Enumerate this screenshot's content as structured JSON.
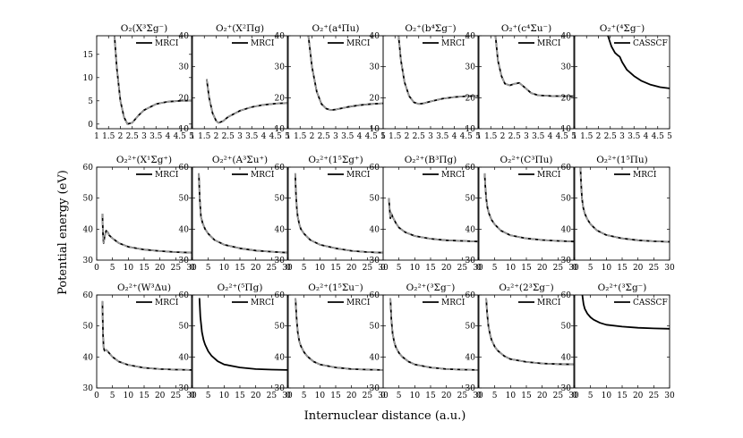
{
  "figure": {
    "xlabel": "Internuclear distance (a.u.)",
    "ylabel": "Potential energy (eV)",
    "colors": {
      "curve": "#000000",
      "overlay": "#9a9a9a"
    }
  },
  "chart_data": [
    {
      "type": "line",
      "title": "O₂(X³Σg⁻)",
      "method": "MRCI",
      "legend_label": "MRCI",
      "xlim": [
        1,
        5
      ],
      "ylim": [
        -1,
        19
      ],
      "xticks": [
        1,
        1.5,
        2,
        2.5,
        3,
        3.5,
        4,
        4.5,
        5
      ],
      "yticks": [
        0,
        5,
        10,
        15
      ],
      "dashed": true,
      "x": [
        1.75,
        1.85,
        2.0,
        2.15,
        2.3,
        2.5,
        2.75,
        3.0,
        3.5,
        4.0,
        4.5,
        5.0
      ],
      "y": [
        19,
        12,
        5.0,
        1.5,
        0.0,
        0.3,
        1.8,
        3.0,
        4.3,
        4.8,
        5.0,
        5.05
      ]
    },
    {
      "type": "line",
      "title": "O₂⁺(X²Πg)",
      "method": "MRCI",
      "legend_label": "MRCI",
      "xlim": [
        1,
        5
      ],
      "ylim": [
        10,
        40
      ],
      "xticks": [
        1,
        1.5,
        2,
        2.5,
        3,
        3.5,
        4,
        4.5,
        5
      ],
      "yticks": [
        10,
        20,
        30,
        40
      ],
      "dashed": true,
      "x": [
        1.6,
        1.7,
        1.85,
        2.0,
        2.1,
        2.3,
        2.5,
        3.0,
        3.5,
        4.0,
        4.5,
        5.0
      ],
      "y": [
        26,
        20,
        15,
        12.5,
        11.9,
        12.5,
        13.8,
        15.8,
        17.0,
        17.7,
        18.1,
        18.3
      ]
    },
    {
      "type": "line",
      "title": "O₂⁺(a⁴Πu)",
      "method": "MRCI",
      "legend_label": "MRCI",
      "xlim": [
        1,
        5
      ],
      "ylim": [
        10,
        40
      ],
      "xticks": [
        1,
        1.5,
        2,
        2.5,
        3,
        3.5,
        4,
        4.5,
        5
      ],
      "yticks": [
        10,
        20,
        30,
        40
      ],
      "dashed": true,
      "x": [
        1.85,
        2.0,
        2.2,
        2.4,
        2.6,
        2.8,
        3.0,
        3.5,
        4.0,
        4.5,
        5.0
      ],
      "y": [
        40,
        30,
        22,
        18,
        16.5,
        16.0,
        16.2,
        17.0,
        17.6,
        18.0,
        18.2
      ]
    },
    {
      "type": "line",
      "title": "O₂⁺(b⁴Σg⁻)",
      "method": "MRCI",
      "legend_label": "MRCI",
      "xlim": [
        1,
        5
      ],
      "ylim": [
        10,
        40
      ],
      "xticks": [
        1,
        1.5,
        2,
        2.5,
        3,
        3.5,
        4,
        4.5,
        5
      ],
      "yticks": [
        10,
        20,
        30,
        40
      ],
      "dashed": true,
      "x": [
        1.65,
        1.75,
        1.9,
        2.1,
        2.3,
        2.5,
        2.7,
        3.0,
        3.5,
        4.0,
        4.5,
        5.0
      ],
      "y": [
        40,
        32,
        25,
        20.5,
        18.5,
        18.0,
        18.2,
        18.8,
        19.7,
        20.2,
        20.5,
        20.6
      ]
    },
    {
      "type": "line",
      "title": "O₂⁺(c⁴Σu⁻)",
      "method": "MRCI",
      "legend_label": "MRCI",
      "xlim": [
        1,
        5
      ],
      "ylim": [
        10,
        40
      ],
      "xticks": [
        1,
        1.5,
        2,
        2.5,
        3,
        3.5,
        4,
        4.5,
        5
      ],
      "yticks": [
        10,
        20,
        30,
        40
      ],
      "dashed": true,
      "x": [
        1.7,
        1.8,
        1.95,
        2.1,
        2.3,
        2.5,
        2.7,
        2.9,
        3.2,
        3.5,
        4.0,
        4.5,
        5.0
      ],
      "y": [
        40,
        32,
        27,
        24.5,
        24.0,
        24.5,
        24.8,
        23.5,
        21.5,
        20.8,
        20.6,
        20.5,
        20.5
      ]
    },
    {
      "type": "line",
      "title": "O₂⁺(⁴Σg⁻)",
      "method": "CASSCF",
      "legend_label": "CASSCF",
      "xlim": [
        1,
        5
      ],
      "ylim": [
        10,
        40
      ],
      "xticks": [
        1,
        1.5,
        2,
        2.5,
        3,
        3.5,
        4,
        4.5,
        5
      ],
      "yticks": [
        10,
        20,
        30,
        40
      ],
      "dashed": false,
      "x": [
        2.4,
        2.55,
        2.7,
        2.8,
        2.9,
        3.0,
        3.2,
        3.5,
        3.8,
        4.2,
        4.6,
        5.0
      ],
      "y": [
        40,
        36.5,
        34.5,
        33.8,
        33.2,
        31.5,
        29.0,
        27.0,
        25.5,
        24.2,
        23.4,
        23.0
      ]
    },
    {
      "type": "line",
      "title": "O₂²⁺(X¹Σg⁺)",
      "method": "MRCI",
      "legend_label": "MRCI",
      "xlim": [
        0,
        30
      ],
      "ylim": [
        30,
        60
      ],
      "xticks": [
        0,
        5,
        10,
        15,
        20,
        25,
        30
      ],
      "yticks": [
        30,
        40,
        50,
        60
      ],
      "dashed": true,
      "x": [
        1.8,
        2.0,
        2.2,
        2.5,
        3.0,
        3.5,
        4.0,
        5.0,
        7.0,
        10.0,
        15.0,
        20.0,
        25.0,
        30.0
      ],
      "y": [
        45,
        38,
        35.5,
        37.5,
        39.5,
        39.0,
        38.0,
        37.0,
        35.5,
        34.3,
        33.4,
        32.9,
        32.6,
        32.4
      ]
    },
    {
      "type": "line",
      "title": "O₂²⁺(A³Σu⁺)",
      "method": "MRCI",
      "legend_label": "MRCI",
      "xlim": [
        0,
        30
      ],
      "ylim": [
        30,
        60
      ],
      "xticks": [
        0,
        5,
        10,
        15,
        20,
        25,
        30
      ],
      "yticks": [
        30,
        40,
        50,
        60
      ],
      "dashed": true,
      "x": [
        2.0,
        2.3,
        2.7,
        3.2,
        4.0,
        5.0,
        7.0,
        10.0,
        15.0,
        20.0,
        25.0,
        30.0
      ],
      "y": [
        58,
        50,
        44,
        42,
        40,
        38.5,
        36.5,
        35.0,
        33.8,
        33.1,
        32.7,
        32.4
      ]
    },
    {
      "type": "line",
      "title": "O₂²⁺(1⁵Σg⁺)",
      "method": "MRCI",
      "legend_label": "MRCI",
      "xlim": [
        0,
        30
      ],
      "ylim": [
        30,
        60
      ],
      "xticks": [
        0,
        5,
        10,
        15,
        20,
        25,
        30
      ],
      "yticks": [
        30,
        40,
        50,
        60
      ],
      "dashed": true,
      "x": [
        2.2,
        2.4,
        2.7,
        3.0,
        3.5,
        4.0,
        5.0,
        7.0,
        10.0,
        15.0,
        20.0,
        25.0,
        30.0
      ],
      "y": [
        58,
        52,
        47,
        44,
        41.5,
        40,
        38.5,
        36.5,
        35.0,
        33.8,
        33.0,
        32.6,
        32.4
      ]
    },
    {
      "type": "line",
      "title": "O₂²⁺(B³Πg)",
      "method": "MRCI",
      "legend_label": "MRCI",
      "xlim": [
        0,
        30
      ],
      "ylim": [
        30,
        60
      ],
      "xticks": [
        0,
        5,
        10,
        15,
        20,
        25,
        30
      ],
      "yticks": [
        30,
        40,
        50,
        60
      ],
      "dashed": true,
      "x": [
        1.8,
        2.0,
        2.3,
        2.6,
        3.0,
        3.5,
        4.0,
        5.0,
        7.0,
        10.0,
        15.0,
        20.0,
        25.0,
        30.0
      ],
      "y": [
        50,
        47,
        43.5,
        45,
        44,
        43,
        42,
        40.5,
        39,
        37.8,
        36.9,
        36.4,
        36.2,
        36.0
      ]
    },
    {
      "type": "line",
      "title": "O₂²⁺(C³Πu)",
      "method": "MRCI",
      "legend_label": "MRCI",
      "xlim": [
        0,
        30
      ],
      "ylim": [
        30,
        60
      ],
      "xticks": [
        0,
        5,
        10,
        15,
        20,
        25,
        30
      ],
      "yticks": [
        30,
        40,
        50,
        60
      ],
      "dashed": true,
      "x": [
        1.8,
        2.0,
        2.3,
        2.7,
        3.2,
        4.0,
        5.0,
        7.0,
        10.0,
        15.0,
        20.0,
        25.0,
        30.0
      ],
      "y": [
        58,
        54,
        50,
        47,
        45,
        43,
        41.5,
        39.5,
        38,
        37,
        36.5,
        36.2,
        36.0
      ]
    },
    {
      "type": "line",
      "title": "O₂²⁺(1⁵Πu)",
      "method": "MRCI",
      "legend_label": "MRCI",
      "xlim": [
        0,
        30
      ],
      "ylim": [
        30,
        60
      ],
      "xticks": [
        0,
        5,
        10,
        15,
        20,
        25,
        30
      ],
      "yticks": [
        30,
        40,
        50,
        60
      ],
      "dashed": true,
      "x": [
        1.8,
        2.0,
        2.3,
        2.7,
        3.2,
        4.0,
        5.0,
        7.0,
        10.0,
        15.0,
        20.0,
        25.0,
        30.0
      ],
      "y": [
        60,
        55,
        50,
        47,
        45,
        43.2,
        41.6,
        39.6,
        38.1,
        37.0,
        36.4,
        36.1,
        35.9
      ]
    },
    {
      "type": "line",
      "title": "O₂²⁺(W³Δu)",
      "method": "MRCI",
      "legend_label": "MRCI",
      "xlim": [
        0,
        30
      ],
      "ylim": [
        30,
        60
      ],
      "xticks": [
        0,
        5,
        10,
        15,
        20,
        25,
        30
      ],
      "yticks": [
        30,
        40,
        50,
        60
      ],
      "dashed": true,
      "x": [
        1.8,
        2.0,
        2.2,
        2.5,
        3.0,
        3.5,
        4.0,
        5.0,
        7.0,
        10.0,
        15.0,
        20.0,
        25.0,
        30.0
      ],
      "y": [
        58,
        47,
        43,
        42,
        42.3,
        41.8,
        41.2,
        40,
        38.5,
        37.4,
        36.5,
        36.1,
        35.9,
        35.8
      ]
    },
    {
      "type": "line",
      "title": "O₂²⁺(⁵Πg)",
      "method": "MRCI",
      "legend_label": "MRCI",
      "xlim": [
        0,
        30
      ],
      "ylim": [
        30,
        60
      ],
      "xticks": [
        0,
        5,
        10,
        15,
        20,
        25,
        30
      ],
      "yticks": [
        30,
        40,
        50,
        60
      ],
      "dashed": false,
      "x": [
        2.2,
        2.5,
        3.0,
        3.5,
        4.0,
        5.0,
        6.0,
        8.0,
        10.0,
        15.0,
        20.0,
        25.0,
        30.0
      ],
      "y": [
        59,
        53,
        48,
        45.5,
        44,
        41.8,
        40.4,
        38.6,
        37.6,
        36.6,
        36.1,
        35.9,
        35.8
      ]
    },
    {
      "type": "line",
      "title": "O₂²⁺(1⁵Σu⁻)",
      "method": "MRCI",
      "legend_label": "MRCI",
      "xlim": [
        0,
        30
      ],
      "ylim": [
        30,
        60
      ],
      "xticks": [
        0,
        5,
        10,
        15,
        20,
        25,
        30
      ],
      "yticks": [
        30,
        40,
        50,
        60
      ],
      "dashed": true,
      "x": [
        2.3,
        2.6,
        3.0,
        3.5,
        4.0,
        5.0,
        6.0,
        8.0,
        10.0,
        15.0,
        20.0,
        25.0,
        30.0
      ],
      "y": [
        59,
        53,
        48,
        45,
        43.5,
        41.5,
        40.2,
        38.5,
        37.6,
        36.6,
        36.1,
        35.9,
        35.8
      ]
    },
    {
      "type": "line",
      "title": "O₂²⁺(³Σg⁻)",
      "method": "MRCI",
      "legend_label": "MRCI",
      "xlim": [
        0,
        30
      ],
      "ylim": [
        30,
        60
      ],
      "xticks": [
        0,
        5,
        10,
        15,
        20,
        25,
        30
      ],
      "yticks": [
        30,
        40,
        50,
        60
      ],
      "dashed": true,
      "x": [
        2.3,
        2.6,
        3.0,
        3.5,
        4.0,
        5.0,
        6.0,
        8.0,
        10.0,
        15.0,
        20.0,
        25.0,
        30.0
      ],
      "y": [
        59,
        52,
        47.5,
        44.8,
        43.2,
        41.3,
        40.1,
        38.5,
        37.6,
        36.6,
        36.1,
        35.9,
        35.8
      ]
    },
    {
      "type": "line",
      "title": "O₂²⁺(2³Σg⁻)",
      "method": "MRCI",
      "legend_label": "MRCI",
      "xlim": [
        0,
        30
      ],
      "ylim": [
        30,
        60
      ],
      "xticks": [
        0,
        5,
        10,
        15,
        20,
        25,
        30
      ],
      "yticks": [
        30,
        40,
        50,
        60
      ],
      "dashed": true,
      "x": [
        2.3,
        2.6,
        3.0,
        3.5,
        4.0,
        5.0,
        6.0,
        8.0,
        10.0,
        15.0,
        20.0,
        25.0,
        30.0
      ],
      "y": [
        59,
        54,
        50,
        47.3,
        45.5,
        43.3,
        42,
        40.3,
        39.3,
        38.4,
        37.9,
        37.7,
        37.6
      ]
    },
    {
      "type": "line",
      "title": "O₂²⁺(³Σg⁻)",
      "method": "CASSCF",
      "legend_label": "CASSCF",
      "xlim": [
        0,
        30
      ],
      "ylim": [
        30,
        60
      ],
      "xticks": [
        0,
        5,
        10,
        15,
        20,
        25,
        30
      ],
      "yticks": [
        30,
        40,
        50,
        60
      ],
      "dashed": false,
      "x": [
        2.4,
        2.8,
        3.2,
        4.0,
        5.0,
        6.0,
        8.0,
        10.0,
        15.0,
        20.0,
        25.0,
        30.0
      ],
      "y": [
        60,
        57,
        55.5,
        54,
        52.8,
        52.0,
        51,
        50.4,
        49.8,
        49.4,
        49.2,
        49.1
      ]
    }
  ]
}
